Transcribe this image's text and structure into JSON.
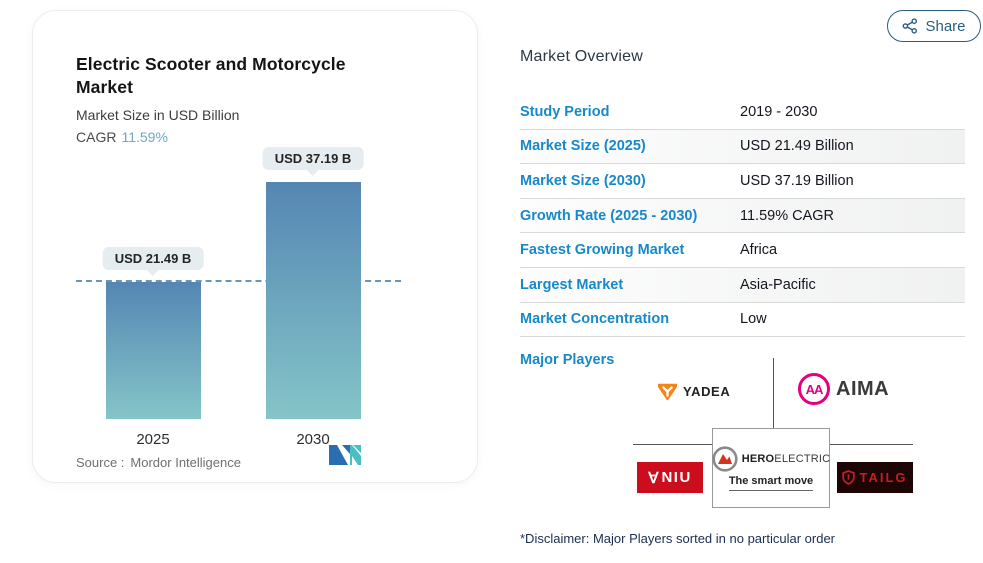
{
  "share": {
    "label": "Share"
  },
  "chart": {
    "title": "Electric Scooter and Motorcycle Market",
    "subtitle": "Market Size in USD Billion",
    "cagr_label": "CAGR",
    "cagr_value": "11.59%",
    "source_label": "Source :",
    "source_value": "Mordor Intelligence"
  },
  "chart_data": {
    "type": "bar",
    "title": "Electric Scooter and Motorcycle Market",
    "subtitle": "Market Size in USD Billion",
    "unit": "USD Billion",
    "categories": [
      "2025",
      "2030"
    ],
    "values": [
      21.49,
      37.19
    ],
    "value_labels": [
      "USD 21.49 B",
      "USD 37.19 B"
    ],
    "cagr": "11.59%",
    "ylim": [
      0,
      40
    ],
    "reference_line": 21.49,
    "grid": "off",
    "legend": "none"
  },
  "overview": {
    "heading": "Market Overview",
    "rows": [
      {
        "label": "Study Period",
        "value": "2019 - 2030"
      },
      {
        "label": "Market Size (2025)",
        "value": "USD 21.49 Billion"
      },
      {
        "label": "Market Size (2030)",
        "value": "USD 37.19 Billion"
      },
      {
        "label": "Growth Rate (2025 - 2030)",
        "value": "11.59% CAGR"
      },
      {
        "label": "Fastest Growing Market",
        "value": "Africa"
      },
      {
        "label": "Largest Market",
        "value": "Asia-Pacific"
      },
      {
        "label": "Market Concentration",
        "value": "Low"
      }
    ]
  },
  "major_players": {
    "label": "Major Players",
    "yadea": "YADEA",
    "aima": "AIMA",
    "aima_monogram": "AA",
    "niu": "NIU",
    "niu_glyph": "∀",
    "hero_primary": "HERO",
    "hero_secondary": "ELECTRIC",
    "hero_tagline": "The smart move",
    "tailg": "TAILG"
  },
  "disclaimer": "*Disclaimer: Major Players sorted in no particular order",
  "colors": {
    "accent_blue": "#1789ca",
    "cagr_blue": "#6ea7cb",
    "bar_gradient_top": "#5586b3",
    "bar_gradient_bottom": "#84c5c8",
    "dashed_line": "#6397bd",
    "value_pill_bg": "#e6edf0",
    "share_button": "#2a5e7e",
    "yadea_orange": "#f08519",
    "aima_pink": "#e4007f",
    "niu_red": "#cc0d1e",
    "hero_red": "#d3341d",
    "tailg_red": "#c41e25",
    "tailg_bg": "#1d0505"
  }
}
